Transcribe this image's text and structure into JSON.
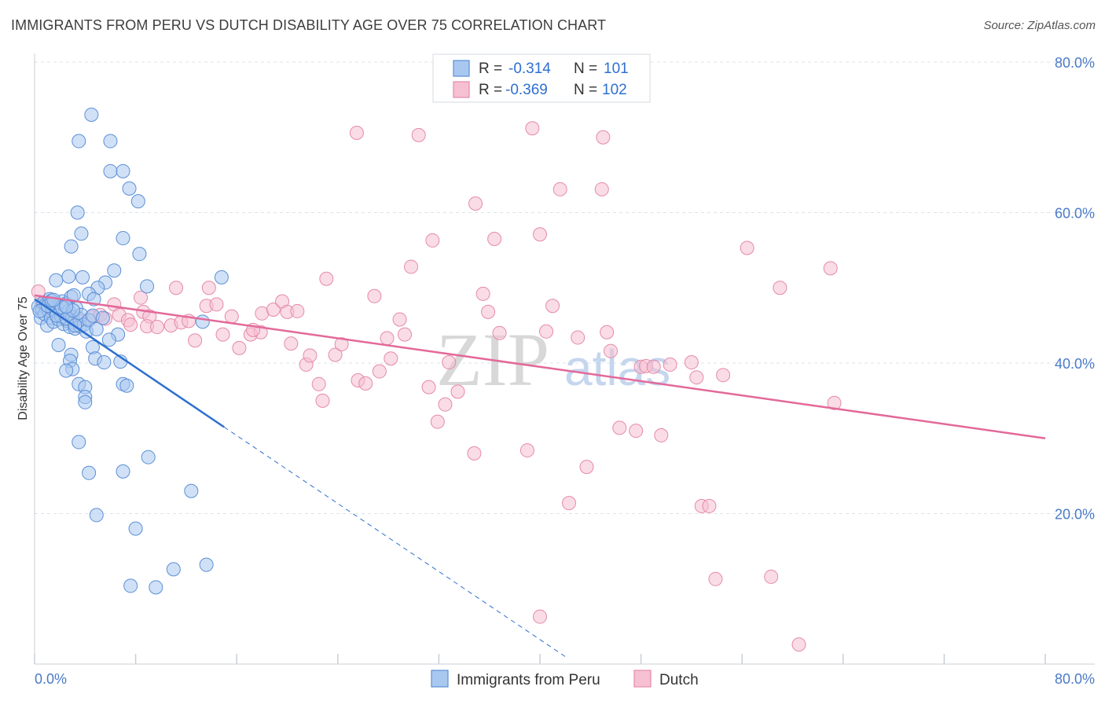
{
  "title": "IMMIGRANTS FROM PERU VS DUTCH DISABILITY AGE OVER 75 CORRELATION CHART",
  "source": "Source: ZipAtlas.com",
  "watermark": {
    "a": "ZIP",
    "b": "atlas"
  },
  "colors": {
    "blue_fill": "#a9c8f0",
    "blue_stroke": "#5b8fd6",
    "blue_line": "#2d6fcf",
    "pink_fill": "#f6c0d2",
    "pink_stroke": "#e58aaa",
    "pink_line": "#e3699a",
    "grid": "#dde3ea",
    "tick_text": "#4a7ac9"
  },
  "legend": {
    "rows": [
      {
        "r_label": "R =",
        "r_value": "-0.314",
        "n_label": "N =",
        "n_value": "101"
      },
      {
        "r_label": "R =",
        "r_value": "-0.369",
        "n_label": "N =",
        "n_value": "102"
      }
    ]
  },
  "bottom_legend": [
    {
      "label": "Immigrants from Peru"
    },
    {
      "label": "Dutch"
    }
  ],
  "chart_data": {
    "type": "scatter",
    "title": "IMMIGRANTS FROM PERU VS DUTCH DISABILITY AGE OVER 75 CORRELATION CHART",
    "xlabel": "",
    "ylabel": "Disability Age Over 75",
    "xlim": [
      0,
      80
    ],
    "ylim": [
      0,
      80
    ],
    "x_ticks": [
      0,
      8,
      16,
      24,
      32,
      40,
      48,
      56,
      64,
      72,
      80
    ],
    "x_tick_labels": {
      "min": "0.0%",
      "max": "80.0%"
    },
    "y_ticks": [
      20,
      40,
      60,
      80
    ],
    "y_tick_labels": [
      "20.0%",
      "40.0%",
      "60.0%",
      "80.0%"
    ],
    "grid": true,
    "legend_position": "top-center",
    "series": [
      {
        "name": "Immigrants from Peru",
        "R": -0.314,
        "N": 101,
        "trend": {
          "x0": 0,
          "y0": 48.5,
          "x1": 15,
          "y1": 31.5,
          "dashed_to_x": 42,
          "dashed_to_y": 1
        },
        "points": [
          [
            0.3,
            47.5
          ],
          [
            0.5,
            46
          ],
          [
            0.6,
            47
          ],
          [
            0.7,
            48
          ],
          [
            0.8,
            46.5
          ],
          [
            0.9,
            47.8
          ],
          [
            1.0,
            45
          ],
          [
            1.1,
            47
          ],
          [
            1.2,
            48.5
          ],
          [
            1.3,
            46
          ],
          [
            1.4,
            47.2
          ],
          [
            1.5,
            45.5
          ],
          [
            1.6,
            48
          ],
          [
            1.7,
            46.8
          ],
          [
            1.8,
            47.5
          ],
          [
            1.9,
            45.8
          ],
          [
            2.0,
            47
          ],
          [
            2.1,
            46.2
          ],
          [
            2.2,
            48.2
          ],
          [
            2.3,
            45.2
          ],
          [
            2.4,
            46.6
          ],
          [
            2.5,
            47.9
          ],
          [
            2.6,
            45.6
          ],
          [
            2.7,
            46.9
          ],
          [
            2.8,
            44.8
          ],
          [
            2.9,
            48.8
          ],
          [
            3.0,
            46.1
          ],
          [
            3.1,
            45.4
          ],
          [
            3.2,
            44.6
          ],
          [
            3.3,
            47.3
          ],
          [
            3.5,
            45.9
          ],
          [
            3.6,
            44.9
          ],
          [
            3.7,
            46.4
          ],
          [
            3.9,
            45.1
          ],
          [
            4.1,
            44.2
          ],
          [
            4.3,
            45.7
          ],
          [
            4.6,
            46.3
          ],
          [
            4.9,
            44.5
          ],
          [
            0.4,
            46.9
          ],
          [
            1.05,
            47.6
          ],
          [
            1.35,
            48.3
          ],
          [
            1.75,
            46.3
          ],
          [
            2.15,
            47.4
          ],
          [
            2.55,
            45.9
          ],
          [
            3.05,
            47.0
          ],
          [
            4.5,
            73
          ],
          [
            3.5,
            69.5
          ],
          [
            6.0,
            69.5
          ],
          [
            6.0,
            65.5
          ],
          [
            7.0,
            65.5
          ],
          [
            7.5,
            63.2
          ],
          [
            8.2,
            61.5
          ],
          [
            3.4,
            60
          ],
          [
            3.7,
            57.2
          ],
          [
            2.9,
            55.5
          ],
          [
            7.0,
            56.6
          ],
          [
            8.3,
            54.5
          ],
          [
            6.3,
            52.3
          ],
          [
            1.7,
            51.0
          ],
          [
            2.7,
            51.5
          ],
          [
            3.8,
            51.4
          ],
          [
            5.6,
            50.7
          ],
          [
            5.0,
            50.0
          ],
          [
            4.3,
            49.2
          ],
          [
            8.9,
            50.2
          ],
          [
            14.8,
            51.4
          ],
          [
            4.7,
            48.5
          ],
          [
            1.5,
            48.4
          ],
          [
            2.5,
            47.5
          ],
          [
            3.1,
            49.0
          ],
          [
            13.3,
            45.5
          ],
          [
            5.4,
            46.0
          ],
          [
            6.6,
            43.8
          ],
          [
            5.9,
            43.1
          ],
          [
            4.6,
            42.1
          ],
          [
            1.9,
            42.4
          ],
          [
            2.9,
            41.1
          ],
          [
            6.8,
            40.2
          ],
          [
            4.8,
            40.6
          ],
          [
            5.5,
            40.1
          ],
          [
            2.8,
            40.3
          ],
          [
            3.0,
            39.2
          ],
          [
            2.5,
            39.0
          ],
          [
            3.5,
            37.2
          ],
          [
            4.0,
            36.8
          ],
          [
            7.0,
            37.2
          ],
          [
            7.3,
            37.0
          ],
          [
            4.0,
            35.5
          ],
          [
            4.0,
            34.8
          ],
          [
            3.5,
            29.5
          ],
          [
            9.0,
            27.5
          ],
          [
            4.3,
            25.4
          ],
          [
            7.0,
            25.6
          ],
          [
            12.4,
            23.0
          ],
          [
            4.9,
            19.8
          ],
          [
            8.0,
            18.0
          ],
          [
            13.6,
            13.2
          ],
          [
            11.0,
            12.6
          ],
          [
            7.6,
            10.4
          ],
          [
            9.6,
            10.2
          ],
          [
            3.2,
            45.0
          ]
        ]
      },
      {
        "name": "Dutch",
        "R": -0.369,
        "N": 102,
        "trend": {
          "x0": 0,
          "y0": 49.0,
          "x1": 80,
          "y1": 30.0
        },
        "points": [
          [
            0.3,
            49.5
          ],
          [
            0.6,
            47.8
          ],
          [
            1.1,
            47.0
          ],
          [
            1.7,
            46.6
          ],
          [
            2.2,
            46.2
          ],
          [
            2.8,
            45.8
          ],
          [
            3.5,
            45.6
          ],
          [
            4.5,
            46.1
          ],
          [
            5.2,
            46.4
          ],
          [
            5.6,
            45.9
          ],
          [
            6.3,
            47.8
          ],
          [
            6.7,
            46.4
          ],
          [
            7.4,
            45.7
          ],
          [
            8.4,
            48.7
          ],
          [
            8.6,
            46.8
          ],
          [
            9.1,
            46.2
          ],
          [
            7.6,
            45.1
          ],
          [
            8.9,
            44.9
          ],
          [
            9.7,
            44.8
          ],
          [
            10.8,
            45.0
          ],
          [
            11.6,
            45.4
          ],
          [
            12.2,
            45.6
          ],
          [
            11.2,
            50.0
          ],
          [
            13.6,
            47.6
          ],
          [
            14.4,
            47.8
          ],
          [
            13.8,
            50.0
          ],
          [
            12.7,
            43.0
          ],
          [
            14.9,
            43.8
          ],
          [
            15.6,
            46.2
          ],
          [
            16.2,
            42.0
          ],
          [
            17.1,
            43.8
          ],
          [
            17.9,
            44.1
          ],
          [
            17.3,
            44.4
          ],
          [
            18.0,
            46.6
          ],
          [
            18.9,
            47.1
          ],
          [
            19.6,
            48.2
          ],
          [
            20.0,
            46.8
          ],
          [
            20.8,
            46.9
          ],
          [
            20.3,
            42.6
          ],
          [
            21.5,
            39.8
          ],
          [
            21.8,
            41.0
          ],
          [
            23.1,
            51.2
          ],
          [
            23.8,
            41.1
          ],
          [
            24.3,
            42.5
          ],
          [
            22.5,
            37.2
          ],
          [
            22.8,
            35.0
          ],
          [
            25.6,
            37.7
          ],
          [
            26.2,
            37.3
          ],
          [
            26.9,
            48.9
          ],
          [
            27.3,
            38.9
          ],
          [
            27.9,
            43.3
          ],
          [
            28.2,
            40.6
          ],
          [
            28.9,
            45.8
          ],
          [
            29.3,
            43.8
          ],
          [
            29.8,
            52.8
          ],
          [
            30.4,
            70.3
          ],
          [
            31.2,
            36.8
          ],
          [
            31.5,
            56.3
          ],
          [
            31.9,
            32.2
          ],
          [
            32.5,
            34.5
          ],
          [
            32.8,
            40.1
          ],
          [
            33.5,
            36.2
          ],
          [
            34.8,
            28.0
          ],
          [
            34.9,
            61.2
          ],
          [
            35.5,
            49.2
          ],
          [
            35.9,
            46.8
          ],
          [
            36.4,
            56.5
          ],
          [
            36.8,
            44.0
          ],
          [
            39.0,
            28.4
          ],
          [
            39.4,
            71.2
          ],
          [
            40.0,
            57.1
          ],
          [
            40.5,
            44.2
          ],
          [
            41.0,
            47.6
          ],
          [
            41.6,
            63.1
          ],
          [
            42.3,
            21.4
          ],
          [
            43.0,
            43.4
          ],
          [
            43.7,
            26.2
          ],
          [
            44.9,
            63.1
          ],
          [
            45.3,
            44.1
          ],
          [
            45.6,
            41.6
          ],
          [
            46.3,
            31.4
          ],
          [
            47.6,
            31.0
          ],
          [
            48.0,
            39.5
          ],
          [
            48.4,
            39.6
          ],
          [
            49.6,
            30.4
          ],
          [
            50.3,
            39.8
          ],
          [
            52.0,
            40.1
          ],
          [
            52.4,
            38.1
          ],
          [
            52.8,
            21.0
          ],
          [
            53.4,
            21.0
          ],
          [
            53.9,
            11.3
          ],
          [
            54.5,
            38.4
          ],
          [
            56.4,
            55.3
          ],
          [
            58.3,
            11.6
          ],
          [
            59.0,
            50.0
          ],
          [
            60.5,
            2.6
          ],
          [
            63.0,
            52.6
          ],
          [
            63.3,
            34.7
          ],
          [
            40.0,
            6.3
          ],
          [
            25.5,
            70.6
          ],
          [
            45.0,
            70.0
          ],
          [
            49.0,
            39.5
          ]
        ]
      }
    ]
  }
}
